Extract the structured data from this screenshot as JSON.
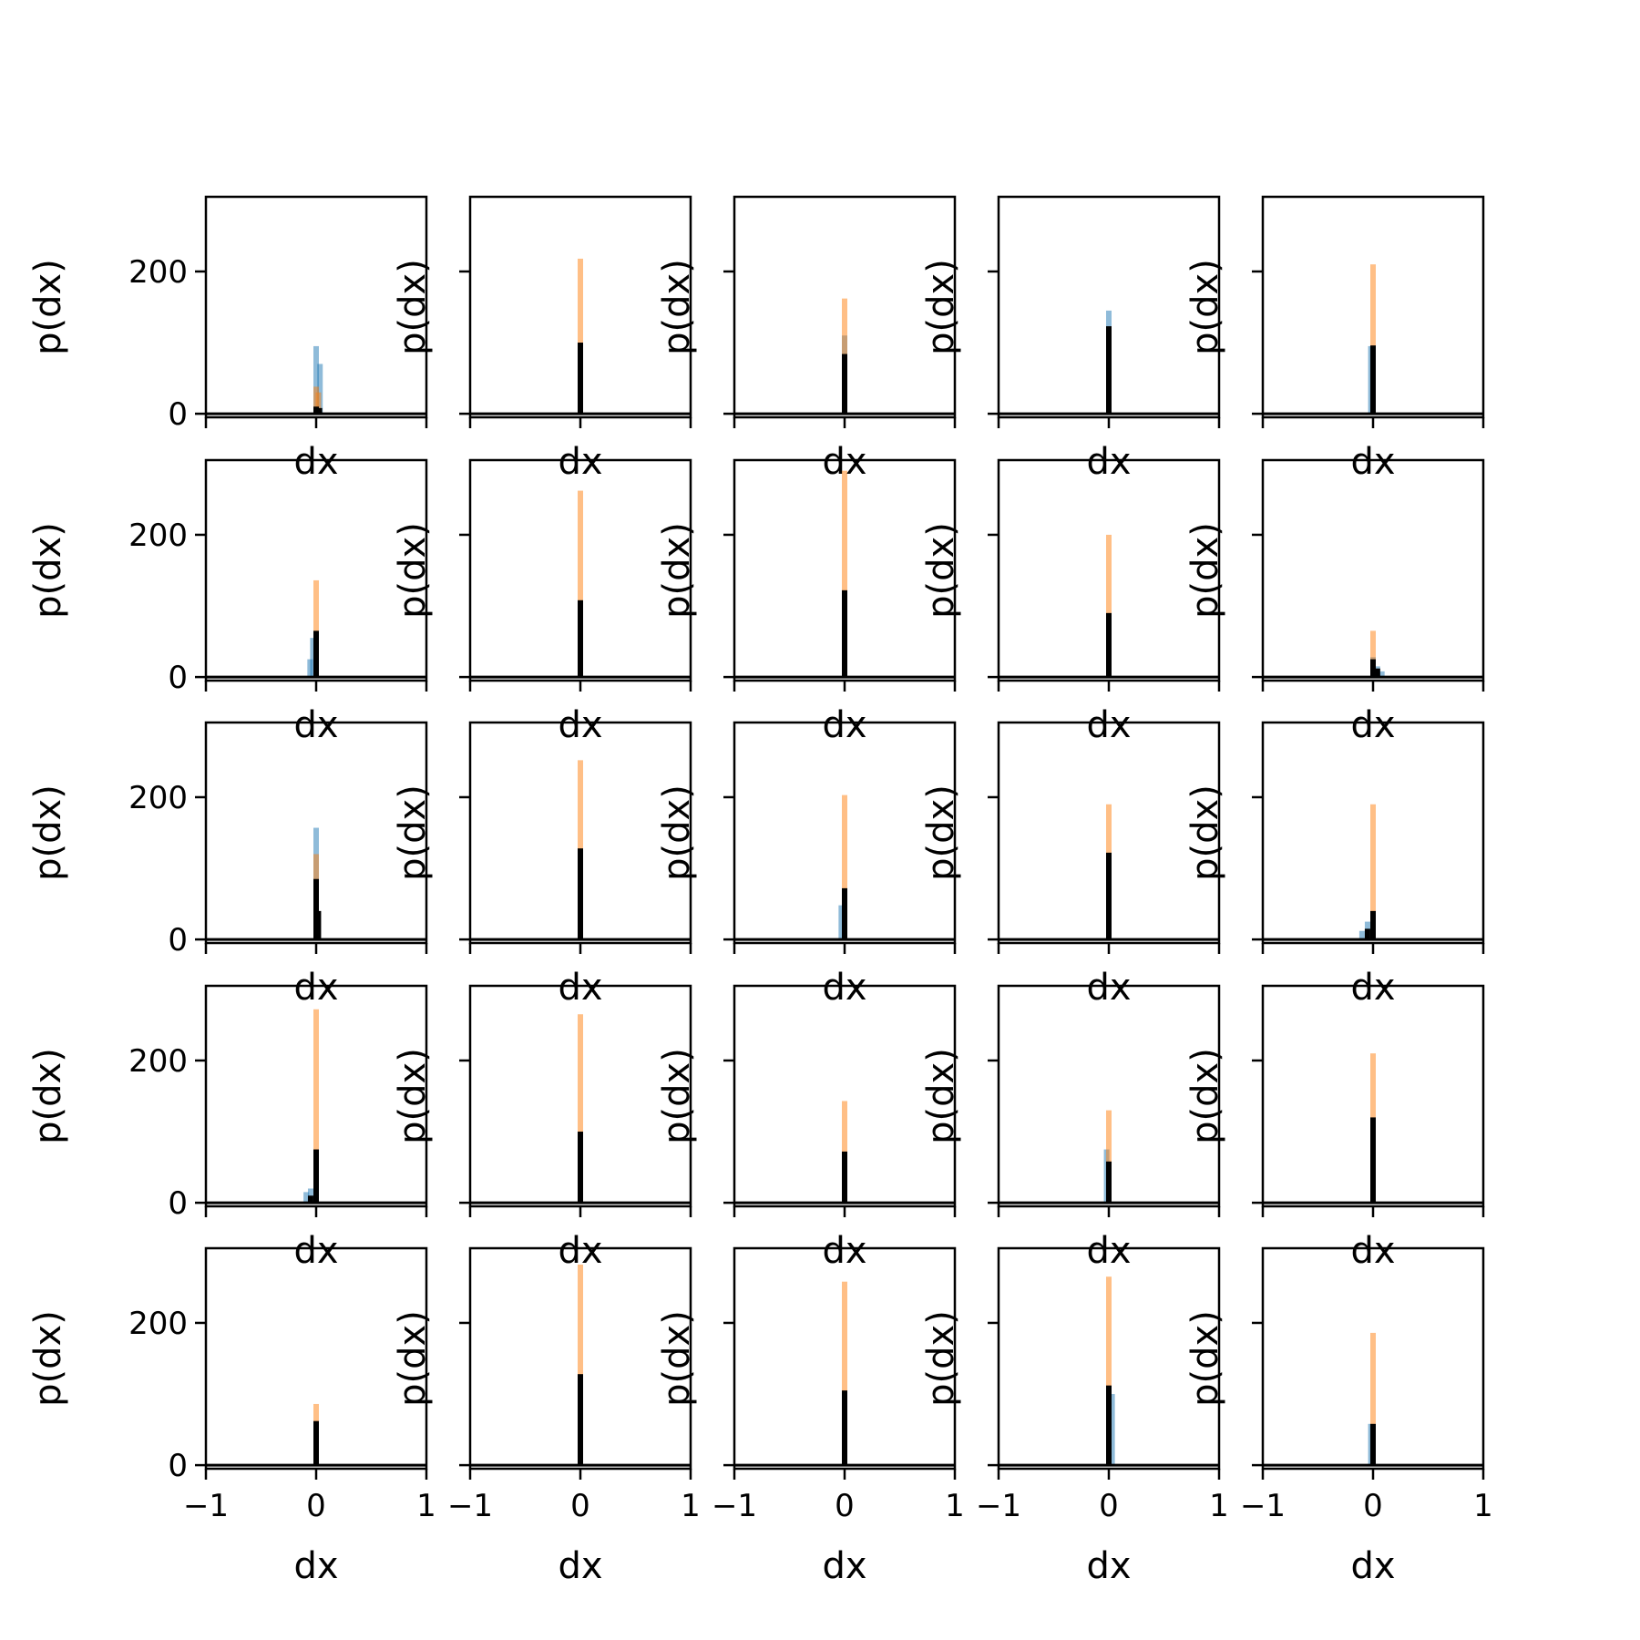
{
  "figure": {
    "rows": 5,
    "cols": 5,
    "colors": {
      "blue": "#1f77b4",
      "orange": "#ff7f0e",
      "black": "#000000",
      "axis": "#000000"
    }
  },
  "chart_data": [
    {
      "type": "bar",
      "row": 0,
      "col": 0,
      "xlabel": "dx",
      "ylabel": "p(dx)",
      "xlim": [
        -1,
        1
      ],
      "ylim": [
        -5,
        305
      ],
      "xticks": [
        "−1",
        "0",
        "1"
      ],
      "yticks": [
        "0",
        "200"
      ],
      "series": [
        {
          "values": [
            {
              "x": 0.0,
              "y": 95
            },
            {
              "x": 0.035,
              "y": 70
            }
          ]
        },
        {
          "values": [
            {
              "x": 0.0,
              "y": 38
            },
            {
              "x": 0.02,
              "y": 30
            }
          ]
        },
        {
          "values": [
            {
              "x": 0.0,
              "y": 10
            },
            {
              "x": 0.03,
              "y": 8
            }
          ]
        }
      ]
    },
    {
      "type": "bar",
      "row": 0,
      "col": 1,
      "xlabel": "dx",
      "ylabel": "p(dx)",
      "xlim": [
        -1,
        1
      ],
      "ylim": [
        -5,
        305
      ],
      "xticks": [
        "−1",
        "0",
        "1"
      ],
      "yticks": [
        "0",
        "200"
      ],
      "series": [
        {
          "values": [
            {
              "x": 0.0,
              "y": 35
            }
          ]
        },
        {
          "values": [
            {
              "x": 0.0,
              "y": 218
            }
          ]
        },
        {
          "values": [
            {
              "x": 0.0,
              "y": 100
            }
          ]
        }
      ]
    },
    {
      "type": "bar",
      "row": 0,
      "col": 2,
      "xlabel": "dx",
      "ylabel": "p(dx)",
      "xlim": [
        -1,
        1
      ],
      "ylim": [
        -5,
        305
      ],
      "xticks": [
        "−1",
        "0",
        "1"
      ],
      "yticks": [
        "0",
        "200"
      ],
      "series": [
        {
          "values": [
            {
              "x": 0.0,
              "y": 110
            }
          ]
        },
        {
          "values": [
            {
              "x": 0.0,
              "y": 162
            }
          ]
        },
        {
          "values": [
            {
              "x": 0.0,
              "y": 84
            }
          ]
        }
      ]
    },
    {
      "type": "bar",
      "row": 0,
      "col": 3,
      "xlabel": "dx",
      "ylabel": "p(dx)",
      "xlim": [
        -1,
        1
      ],
      "ylim": [
        -5,
        305
      ],
      "xticks": [
        "−1",
        "0",
        "1"
      ],
      "yticks": [
        "0",
        "200"
      ],
      "series": [
        {
          "values": [
            {
              "x": 0.0,
              "y": 145
            }
          ]
        },
        {
          "values": [
            {
              "x": 0.0,
              "y": 40
            }
          ]
        },
        {
          "values": [
            {
              "x": 0.0,
              "y": 123
            }
          ]
        }
      ]
    },
    {
      "type": "bar",
      "row": 0,
      "col": 4,
      "xlabel": "dx",
      "ylabel": "p(dx)",
      "xlim": [
        -1,
        1
      ],
      "ylim": [
        -5,
        305
      ],
      "xticks": [
        "−1",
        "0",
        "1"
      ],
      "yticks": [
        "0",
        "200"
      ],
      "series": [
        {
          "values": [
            {
              "x": -0.02,
              "y": 95
            }
          ]
        },
        {
          "values": [
            {
              "x": 0.0,
              "y": 210
            }
          ]
        },
        {
          "values": [
            {
              "x": 0.0,
              "y": 96
            }
          ]
        }
      ]
    },
    {
      "type": "bar",
      "row": 1,
      "col": 0,
      "xlabel": "dx",
      "ylabel": "p(dx)",
      "xlim": [
        -1,
        1
      ],
      "ylim": [
        -5,
        305
      ],
      "xticks": [
        "−1",
        "0",
        "1"
      ],
      "yticks": [
        "0",
        "200"
      ],
      "series": [
        {
          "values": [
            {
              "x": -0.03,
              "y": 55
            },
            {
              "x": -0.055,
              "y": 25
            }
          ]
        },
        {
          "values": [
            {
              "x": 0.0,
              "y": 136
            }
          ]
        },
        {
          "values": [
            {
              "x": 0.0,
              "y": 65
            }
          ]
        }
      ]
    },
    {
      "type": "bar",
      "row": 1,
      "col": 1,
      "xlabel": "dx",
      "ylabel": "p(dx)",
      "xlim": [
        -1,
        1
      ],
      "ylim": [
        -5,
        305
      ],
      "xticks": [
        "−1",
        "0",
        "1"
      ],
      "yticks": [
        "0",
        "200"
      ],
      "series": [
        {
          "values": [
            {
              "x": 0.0,
              "y": 75
            }
          ]
        },
        {
          "values": [
            {
              "x": 0.0,
              "y": 262
            }
          ]
        },
        {
          "values": [
            {
              "x": 0.0,
              "y": 108
            }
          ]
        }
      ]
    },
    {
      "type": "bar",
      "row": 1,
      "col": 2,
      "xlabel": "dx",
      "ylabel": "p(dx)",
      "xlim": [
        -1,
        1
      ],
      "ylim": [
        -5,
        305
      ],
      "xticks": [
        "−1",
        "0",
        "1"
      ],
      "yticks": [
        "0",
        "200"
      ],
      "series": [
        {
          "values": [
            {
              "x": 0.0,
              "y": 30
            }
          ]
        },
        {
          "values": [
            {
              "x": 0.0,
              "y": 290
            }
          ]
        },
        {
          "values": [
            {
              "x": 0.0,
              "y": 122
            }
          ]
        }
      ]
    },
    {
      "type": "bar",
      "row": 1,
      "col": 3,
      "xlabel": "dx",
      "ylabel": "p(dx)",
      "xlim": [
        -1,
        1
      ],
      "ylim": [
        -5,
        305
      ],
      "xticks": [
        "−1",
        "0",
        "1"
      ],
      "yticks": [
        "0",
        "200"
      ],
      "series": [
        {
          "values": [
            {
              "x": 0.0,
              "y": 45
            }
          ]
        },
        {
          "values": [
            {
              "x": 0.0,
              "y": 200
            }
          ]
        },
        {
          "values": [
            {
              "x": 0.0,
              "y": 90
            }
          ]
        }
      ]
    },
    {
      "type": "bar",
      "row": 1,
      "col": 4,
      "xlabel": "dx",
      "ylabel": "p(dx)",
      "xlim": [
        -1,
        1
      ],
      "ylim": [
        -5,
        305
      ],
      "xticks": [
        "−1",
        "0",
        "1"
      ],
      "yticks": [
        "0",
        "200"
      ],
      "series": [
        {
          "values": [
            {
              "x": 0.0,
              "y": 28
            },
            {
              "x": 0.04,
              "y": 15
            },
            {
              "x": 0.08,
              "y": 8
            }
          ]
        },
        {
          "values": [
            {
              "x": 0.0,
              "y": 65
            }
          ]
        },
        {
          "values": [
            {
              "x": 0.0,
              "y": 25
            },
            {
              "x": 0.04,
              "y": 12
            }
          ]
        }
      ]
    },
    {
      "type": "bar",
      "row": 2,
      "col": 0,
      "xlabel": "dx",
      "ylabel": "p(dx)",
      "xlim": [
        -1,
        1
      ],
      "ylim": [
        -5,
        305
      ],
      "xticks": [
        "−1",
        "0",
        "1"
      ],
      "yticks": [
        "0",
        "200"
      ],
      "series": [
        {
          "values": [
            {
              "x": 0.0,
              "y": 157
            }
          ]
        },
        {
          "values": [
            {
              "x": 0.0,
              "y": 120
            }
          ]
        },
        {
          "values": [
            {
              "x": 0.0,
              "y": 85
            },
            {
              "x": 0.02,
              "y": 40
            }
          ]
        }
      ]
    },
    {
      "type": "bar",
      "row": 2,
      "col": 1,
      "xlabel": "dx",
      "ylabel": "p(dx)",
      "xlim": [
        -1,
        1
      ],
      "ylim": [
        -5,
        305
      ],
      "xticks": [
        "−1",
        "0",
        "1"
      ],
      "yticks": [
        "0",
        "200"
      ],
      "series": [
        {
          "values": [
            {
              "x": 0.0,
              "y": 50
            }
          ]
        },
        {
          "values": [
            {
              "x": 0.0,
              "y": 252
            }
          ]
        },
        {
          "values": [
            {
              "x": 0.0,
              "y": 128
            }
          ]
        }
      ]
    },
    {
      "type": "bar",
      "row": 2,
      "col": 2,
      "xlabel": "dx",
      "ylabel": "p(dx)",
      "xlim": [
        -1,
        1
      ],
      "ylim": [
        -5,
        305
      ],
      "xticks": [
        "−1",
        "0",
        "1"
      ],
      "yticks": [
        "0",
        "200"
      ],
      "series": [
        {
          "values": [
            {
              "x": -0.03,
              "y": 48
            }
          ]
        },
        {
          "values": [
            {
              "x": 0.0,
              "y": 203
            }
          ]
        },
        {
          "values": [
            {
              "x": 0.0,
              "y": 72
            }
          ]
        }
      ]
    },
    {
      "type": "bar",
      "row": 2,
      "col": 3,
      "xlabel": "dx",
      "ylabel": "p(dx)",
      "xlim": [
        -1,
        1
      ],
      "ylim": [
        -5,
        305
      ],
      "xticks": [
        "−1",
        "0",
        "1"
      ],
      "yticks": [
        "0",
        "200"
      ],
      "series": [
        {
          "values": [
            {
              "x": 0.0,
              "y": 60
            }
          ]
        },
        {
          "values": [
            {
              "x": 0.0,
              "y": 190
            }
          ]
        },
        {
          "values": [
            {
              "x": 0.0,
              "y": 122
            }
          ]
        }
      ]
    },
    {
      "type": "bar",
      "row": 2,
      "col": 4,
      "xlabel": "dx",
      "ylabel": "p(dx)",
      "xlim": [
        -1,
        1
      ],
      "ylim": [
        -5,
        305
      ],
      "xticks": [
        "−1",
        "0",
        "1"
      ],
      "yticks": [
        "0",
        "200"
      ],
      "series": [
        {
          "values": [
            {
              "x": -0.05,
              "y": 25
            },
            {
              "x": -0.1,
              "y": 12
            }
          ]
        },
        {
          "values": [
            {
              "x": 0.0,
              "y": 190
            }
          ]
        },
        {
          "values": [
            {
              "x": 0.0,
              "y": 40
            },
            {
              "x": -0.05,
              "y": 15
            }
          ]
        }
      ]
    },
    {
      "type": "bar",
      "row": 3,
      "col": 0,
      "xlabel": "dx",
      "ylabel": "p(dx)",
      "xlim": [
        -1,
        1
      ],
      "ylim": [
        -5,
        305
      ],
      "xticks": [
        "−1",
        "0",
        "1"
      ],
      "yticks": [
        "0",
        "200"
      ],
      "series": [
        {
          "values": [
            {
              "x": -0.05,
              "y": 20
            },
            {
              "x": -0.09,
              "y": 15
            }
          ]
        },
        {
          "values": [
            {
              "x": 0.0,
              "y": 272
            }
          ]
        },
        {
          "values": [
            {
              "x": 0.0,
              "y": 75
            },
            {
              "x": -0.05,
              "y": 10
            }
          ]
        }
      ]
    },
    {
      "type": "bar",
      "row": 3,
      "col": 1,
      "xlabel": "dx",
      "ylabel": "p(dx)",
      "xlim": [
        -1,
        1
      ],
      "ylim": [
        -5,
        305
      ],
      "xticks": [
        "−1",
        "0",
        "1"
      ],
      "yticks": [
        "0",
        "200"
      ],
      "series": [
        {
          "values": [
            {
              "x": 0.0,
              "y": 60
            }
          ]
        },
        {
          "values": [
            {
              "x": 0.0,
              "y": 265
            }
          ]
        },
        {
          "values": [
            {
              "x": 0.0,
              "y": 100
            }
          ]
        }
      ]
    },
    {
      "type": "bar",
      "row": 3,
      "col": 2,
      "xlabel": "dx",
      "ylabel": "p(dx)",
      "xlim": [
        -1,
        1
      ],
      "ylim": [
        -5,
        305
      ],
      "xticks": [
        "−1",
        "0",
        "1"
      ],
      "yticks": [
        "0",
        "200"
      ],
      "series": [
        {
          "values": [
            {
              "x": 0.0,
              "y": 40
            }
          ]
        },
        {
          "values": [
            {
              "x": 0.0,
              "y": 143
            }
          ]
        },
        {
          "values": [
            {
              "x": 0.0,
              "y": 72
            }
          ]
        }
      ]
    },
    {
      "type": "bar",
      "row": 3,
      "col": 3,
      "xlabel": "dx",
      "ylabel": "p(dx)",
      "xlim": [
        -1,
        1
      ],
      "ylim": [
        -5,
        305
      ],
      "xticks": [
        "−1",
        "0",
        "1"
      ],
      "yticks": [
        "0",
        "200"
      ],
      "series": [
        {
          "values": [
            {
              "x": -0.02,
              "y": 75
            }
          ]
        },
        {
          "values": [
            {
              "x": 0.0,
              "y": 130
            }
          ]
        },
        {
          "values": [
            {
              "x": 0.0,
              "y": 58
            }
          ]
        }
      ]
    },
    {
      "type": "bar",
      "row": 3,
      "col": 4,
      "xlabel": "dx",
      "ylabel": "p(dx)",
      "xlim": [
        -1,
        1
      ],
      "ylim": [
        -5,
        305
      ],
      "xticks": [
        "−1",
        "0",
        "1"
      ],
      "yticks": [
        "0",
        "200"
      ],
      "series": [
        {
          "values": [
            {
              "x": 0.0,
              "y": 50
            }
          ]
        },
        {
          "values": [
            {
              "x": 0.0,
              "y": 210
            }
          ]
        },
        {
          "values": [
            {
              "x": 0.0,
              "y": 120
            }
          ]
        }
      ]
    },
    {
      "type": "bar",
      "row": 4,
      "col": 0,
      "xlabel": "dx",
      "ylabel": "p(dx)",
      "xlim": [
        -1,
        1
      ],
      "ylim": [
        -5,
        305
      ],
      "xticks": [
        "−1",
        "0",
        "1"
      ],
      "yticks": [
        "0",
        "200"
      ],
      "series": [
        {
          "values": [
            {
              "x": 0.0,
              "y": 30
            }
          ]
        },
        {
          "values": [
            {
              "x": 0.0,
              "y": 86
            }
          ]
        },
        {
          "values": [
            {
              "x": 0.0,
              "y": 62
            }
          ]
        }
      ]
    },
    {
      "type": "bar",
      "row": 4,
      "col": 1,
      "xlabel": "dx",
      "ylabel": "p(dx)",
      "xlim": [
        -1,
        1
      ],
      "ylim": [
        -5,
        305
      ],
      "xticks": [
        "−1",
        "0",
        "1"
      ],
      "yticks": [
        "0",
        "200"
      ],
      "series": [
        {
          "values": [
            {
              "x": 0.0,
              "y": 55
            }
          ]
        },
        {
          "values": [
            {
              "x": 0.0,
              "y": 282
            }
          ]
        },
        {
          "values": [
            {
              "x": 0.0,
              "y": 128
            }
          ]
        }
      ]
    },
    {
      "type": "bar",
      "row": 4,
      "col": 2,
      "xlabel": "dx",
      "ylabel": "p(dx)",
      "xlim": [
        -1,
        1
      ],
      "ylim": [
        -5,
        305
      ],
      "xticks": [
        "−1",
        "0",
        "1"
      ],
      "yticks": [
        "0",
        "200"
      ],
      "series": [
        {
          "values": [
            {
              "x": 0.0,
              "y": 20
            }
          ]
        },
        {
          "values": [
            {
              "x": 0.0,
              "y": 258
            }
          ]
        },
        {
          "values": [
            {
              "x": 0.0,
              "y": 105
            }
          ]
        }
      ]
    },
    {
      "type": "bar",
      "row": 4,
      "col": 3,
      "xlabel": "dx",
      "ylabel": "p(dx)",
      "xlim": [
        -1,
        1
      ],
      "ylim": [
        -5,
        305
      ],
      "xticks": [
        "−1",
        "0",
        "1"
      ],
      "yticks": [
        "0",
        "200"
      ],
      "series": [
        {
          "values": [
            {
              "x": 0.03,
              "y": 100
            }
          ]
        },
        {
          "values": [
            {
              "x": 0.0,
              "y": 265
            }
          ]
        },
        {
          "values": [
            {
              "x": 0.0,
              "y": 112
            }
          ]
        }
      ]
    },
    {
      "type": "bar",
      "row": 4,
      "col": 4,
      "xlabel": "dx",
      "ylabel": "p(dx)",
      "xlim": [
        -1,
        1
      ],
      "ylim": [
        -5,
        305
      ],
      "xticks": [
        "−1",
        "0",
        "1"
      ],
      "yticks": [
        "0",
        "200"
      ],
      "series": [
        {
          "values": [
            {
              "x": -0.02,
              "y": 58
            }
          ]
        },
        {
          "values": [
            {
              "x": 0.0,
              "y": 186
            }
          ]
        },
        {
          "values": [
            {
              "x": 0.0,
              "y": 58
            }
          ]
        }
      ]
    }
  ]
}
